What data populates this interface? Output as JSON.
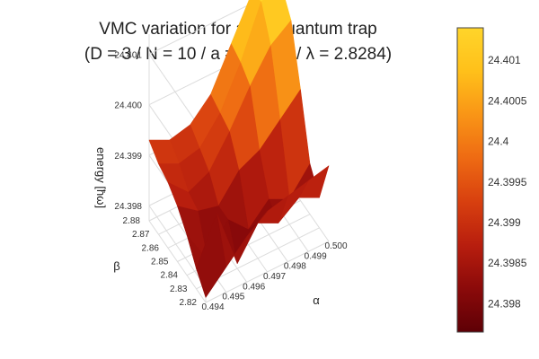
{
  "chart_data": {
    "type": "surface3d",
    "title_line1": "VMC variation for a 3D quantum trap",
    "title_line2": "(D = 3 / N = 10 / a = 0.0043 / λ = 2.8284)",
    "xlabel": "α",
    "ylabel": "β",
    "zlabel": "energy [ħω]",
    "x_ticks": [
      "0.494",
      "0.495",
      "0.496",
      "0.497",
      "0.498",
      "0.499",
      "0.500"
    ],
    "y_ticks": [
      "2.82",
      "2.83",
      "2.84",
      "2.85",
      "2.86",
      "2.87",
      "2.88"
    ],
    "z_ticks": [
      "24.398",
      "24.399",
      "24.400",
      "24.401"
    ],
    "x": [
      0.494,
      0.495,
      0.496,
      0.497,
      0.498,
      0.499,
      0.5
    ],
    "y": [
      2.82,
      2.83,
      2.84,
      2.85,
      2.86,
      2.87,
      2.88
    ],
    "z": [
      [
        24.3978,
        24.3982,
        24.3986,
        24.3989,
        24.399,
        24.3991,
        24.3992
      ],
      [
        24.3981,
        24.399,
        24.3978,
        24.3984,
        24.3982,
        24.3985,
        24.3983
      ],
      [
        24.3985,
        24.3978,
        24.3984,
        24.398,
        24.3984,
        24.3982,
        24.3987
      ],
      [
        24.3988,
        24.3985,
        24.3984,
        24.3989,
        24.3991,
        24.3995,
        24.3999
      ],
      [
        24.399,
        24.3986,
        24.3988,
        24.3994,
        24.4001,
        24.4007,
        24.401
      ],
      [
        24.3991,
        24.3989,
        24.399,
        24.3995,
        24.4003,
        24.4013,
        24.4014
      ],
      [
        24.3993,
        24.3991,
        24.3992,
        24.3996,
        24.4004,
        24.4012,
        24.4014
      ]
    ],
    "zlim": [
      24.3977,
      24.4014
    ],
    "colorscale": [
      "#5e0006",
      "#8b0a0a",
      "#b81e0e",
      "#d8400f",
      "#ee6a13",
      "#f99516",
      "#ffc01a",
      "#ffd52a"
    ],
    "colorbar": {
      "range": [
        24.39765,
        24.4014
      ],
      "ticks": [
        "24.398",
        "24.3985",
        "24.399",
        "24.3995",
        "24.4",
        "24.4005",
        "24.401"
      ],
      "tick_values": [
        24.398,
        24.3985,
        24.399,
        24.3995,
        24.4,
        24.4005,
        24.401
      ]
    }
  }
}
